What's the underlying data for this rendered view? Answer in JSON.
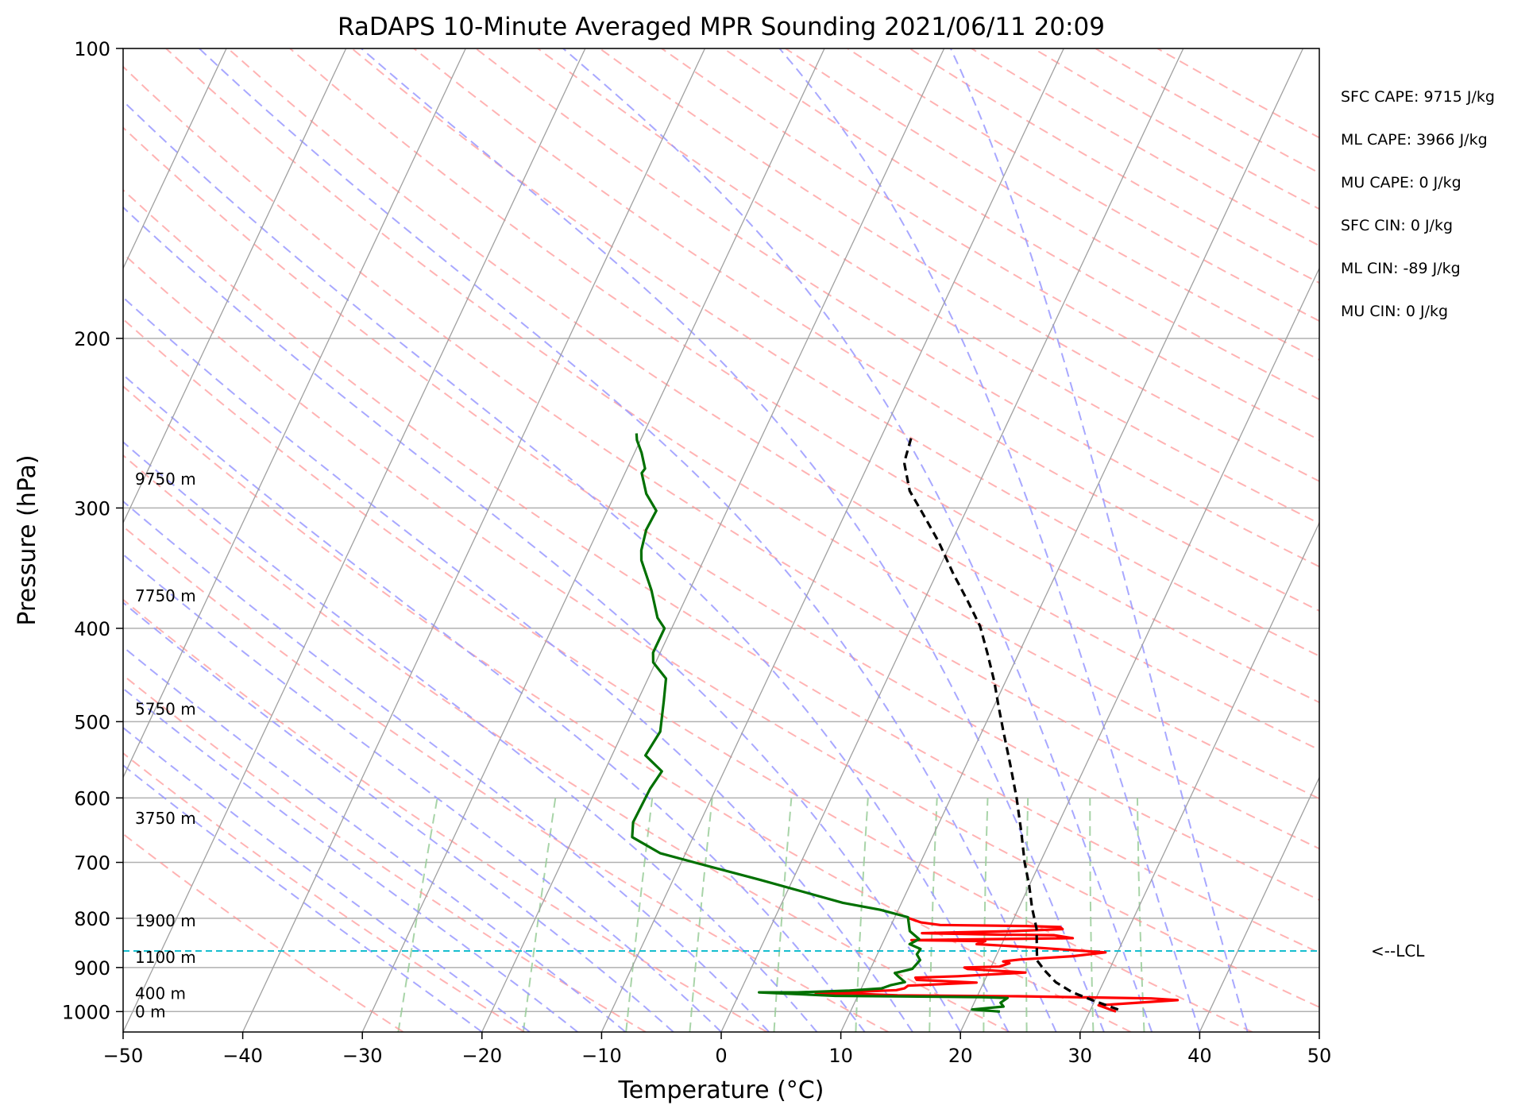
{
  "chart_data": {
    "type": "line",
    "title": "RaDAPS 10-Minute Averaged MPR Sounding 2021/06/11 20:09",
    "xlabel": "Temperature (°C)",
    "ylabel": "Pressure (hPa)",
    "xlim": [
      -50,
      50
    ],
    "ylim": [
      1050,
      100
    ],
    "y_scale": "log",
    "x_ticks": [
      "−50",
      "−40",
      "−30",
      "−20",
      "−10",
      "0",
      "10",
      "20",
      "30",
      "40",
      "50"
    ],
    "y_ticks": [
      "100",
      "200",
      "300",
      "400",
      "500",
      "600",
      "700",
      "800",
      "900",
      "1000"
    ],
    "height_labels": [
      {
        "text": "9750 m",
        "p": 280
      },
      {
        "text": "7750 m",
        "p": 370
      },
      {
        "text": "5750 m",
        "p": 485
      },
      {
        "text": "3750 m",
        "p": 630
      },
      {
        "text": "1900 m",
        "p": 805
      },
      {
        "text": "1100 m",
        "p": 878
      },
      {
        "text": "400 m",
        "p": 958
      },
      {
        "text": "0 m",
        "p": 1000
      }
    ],
    "indices": [
      "SFC CAPE: 9715 J/kg",
      "ML CAPE: 3966 J/kg",
      "MU CAPE: 0 J/kg",
      "SFC CIN: 0 J/kg",
      "ML CIN: -89 J/kg",
      "MU CIN: 0 J/kg"
    ],
    "lcl": {
      "label": "<--LCL",
      "p": 865
    },
    "colors": {
      "temperature": "#ff0000",
      "dewpoint": "#007000",
      "parcel": "#000000",
      "lcl": "#17becf",
      "dry_adiabat": "#ff9999",
      "moist_adiabat": "#9999ff",
      "mixing_ratio": "#99cc99",
      "isotherm": "#a0a0a0",
      "isobar": "#b0b0b0"
    },
    "series": [
      {
        "key": "temperature",
        "points": [
          [
            32.2,
            1000
          ],
          [
            30.5,
            985
          ],
          [
            36.9,
            973
          ],
          [
            34.6,
            969
          ],
          [
            23.4,
            964
          ],
          [
            13.3,
            962
          ],
          [
            9.4,
            958
          ],
          [
            6.4,
            958
          ],
          [
            13.0,
            950
          ],
          [
            13.6,
            946
          ],
          [
            13.8,
            940
          ],
          [
            19.4,
            933
          ],
          [
            14.3,
            927
          ],
          [
            14.1,
            922
          ],
          [
            17.6,
            919
          ],
          [
            23.1,
            911
          ],
          [
            18.1,
            903
          ],
          [
            17.8,
            900
          ],
          [
            20.7,
            898
          ],
          [
            21.4,
            891
          ],
          [
            20.8,
            887
          ],
          [
            22.1,
            883
          ],
          [
            26.4,
            876
          ],
          [
            29.0,
            868
          ],
          [
            22.9,
            858
          ],
          [
            17.9,
            851
          ],
          [
            18.5,
            845
          ],
          [
            12.3,
            843
          ],
          [
            25.7,
            839
          ],
          [
            24.0,
            833
          ],
          [
            19.6,
            832
          ],
          [
            12.9,
            829
          ],
          [
            20.5,
            825
          ],
          [
            24.5,
            821
          ],
          [
            24.2,
            817
          ],
          [
            21.3,
            815
          ],
          [
            14.1,
            813
          ],
          [
            12.4,
            808
          ],
          [
            11.1,
            799
          ]
        ]
      },
      {
        "key": "dewpoint",
        "points": [
          [
            22.5,
            1000
          ],
          [
            20.1,
            995
          ],
          [
            22.6,
            988
          ],
          [
            22.2,
            979
          ],
          [
            22.6,
            968
          ],
          [
            20.4,
            966
          ],
          [
            8.1,
            963
          ],
          [
            4.8,
            959
          ],
          [
            1.6,
            955
          ],
          [
            4.8,
            955
          ],
          [
            9.1,
            951
          ],
          [
            11.7,
            946
          ],
          [
            12.3,
            939
          ],
          [
            13.4,
            932
          ],
          [
            12.6,
            919
          ],
          [
            12.2,
            912
          ],
          [
            13.5,
            903
          ],
          [
            13.8,
            884
          ],
          [
            13.3,
            872
          ],
          [
            13.4,
            861
          ],
          [
            12.3,
            851
          ],
          [
            12.9,
            841
          ],
          [
            11.8,
            825
          ],
          [
            11.1,
            798
          ],
          [
            8.5,
            784
          ],
          [
            5.1,
            771
          ],
          [
            -2.7,
            730
          ],
          [
            -8.5,
            702
          ],
          [
            -12.1,
            685
          ],
          [
            -15.1,
            659
          ],
          [
            -15.6,
            636
          ],
          [
            -15.5,
            587
          ],
          [
            -15.2,
            563
          ],
          [
            -17.2,
            542
          ],
          [
            -16.9,
            512
          ],
          [
            -17.8,
            476
          ],
          [
            -18.5,
            451
          ],
          [
            -20.2,
            434
          ],
          [
            -20.6,
            424
          ],
          [
            -20.6,
            400
          ],
          [
            -21.6,
            390
          ],
          [
            -23.2,
            365
          ],
          [
            -25.2,
            340
          ],
          [
            -25.6,
            332
          ],
          [
            -26.0,
            316
          ],
          [
            -25.9,
            302
          ],
          [
            -27.4,
            290
          ],
          [
            -28.6,
            276
          ],
          [
            -28.5,
            273
          ],
          [
            -29.4,
            263
          ],
          [
            -30.3,
            255
          ],
          [
            -30.6,
            251
          ]
        ]
      },
      {
        "key": "parcel",
        "points": [
          [
            32.3,
            995
          ],
          [
            30.0,
            975
          ],
          [
            27.8,
            955
          ],
          [
            26.0,
            932
          ],
          [
            24.6,
            906
          ],
          [
            23.6,
            885
          ],
          [
            23.2,
            865
          ],
          [
            22.3,
            820
          ],
          [
            21.1,
            780
          ],
          [
            20.0,
            740
          ],
          [
            18.7,
            700
          ],
          [
            17.2,
            650
          ],
          [
            15.5,
            600
          ],
          [
            13.7,
            555
          ],
          [
            11.7,
            510
          ],
          [
            10.3,
            480
          ],
          [
            9.1,
            455
          ],
          [
            7.4,
            425
          ],
          [
            5.7,
            398
          ],
          [
            3.7,
            375
          ],
          [
            1.3,
            350
          ],
          [
            -1.1,
            325
          ],
          [
            -3.4,
            305
          ],
          [
            -5.5,
            288
          ],
          [
            -7.0,
            270
          ],
          [
            -7.1,
            268
          ],
          [
            -7.5,
            252
          ]
        ]
      }
    ]
  }
}
